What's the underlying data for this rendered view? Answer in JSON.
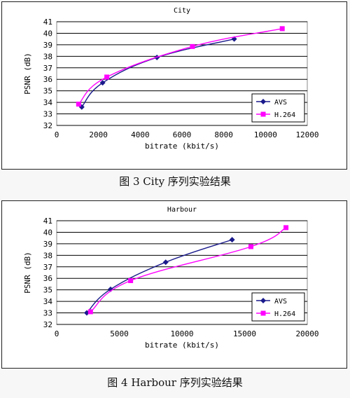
{
  "figures": [
    {
      "caption": "图 3 City 序列实验结果"
    },
    {
      "caption": "图 4 Harbour 序列实验结果"
    }
  ],
  "colors": {
    "avs": "#1a1a8c",
    "h264": "#ff00ff",
    "plot_bg": "#ffffff",
    "grid": "#000000"
  },
  "chart_data": [
    {
      "type": "line",
      "title": "City",
      "xlabel": "bitrate (kbit/s)",
      "ylabel": "PSNR (dB)",
      "xlim": [
        0,
        12000
      ],
      "ylim": [
        32,
        41
      ],
      "xticks": [
        0,
        2000,
        4000,
        6000,
        8000,
        10000,
        12000
      ],
      "yticks": [
        32,
        33,
        34,
        35,
        36,
        37,
        38,
        39,
        40,
        41
      ],
      "grid": "horizontal",
      "legend": "bottom-right",
      "series": [
        {
          "name": "AVS",
          "color": "#1a1a8c",
          "marker": "diamond",
          "x": [
            1200,
            2200,
            4800,
            8500
          ],
          "y": [
            33.6,
            35.7,
            37.9,
            39.5
          ]
        },
        {
          "name": "H.264",
          "color": "#ff00ff",
          "marker": "square",
          "x": [
            1050,
            2400,
            6500,
            10800
          ],
          "y": [
            33.85,
            36.2,
            38.85,
            40.4
          ]
        }
      ]
    },
    {
      "type": "line",
      "title": "Harbour",
      "xlabel": "bitrate (kbit/s)",
      "ylabel": "PSNR (dB)",
      "xlim": [
        0,
        20000
      ],
      "ylim": [
        32,
        41
      ],
      "xticks": [
        0,
        5000,
        10000,
        15000,
        20000
      ],
      "yticks": [
        32,
        33,
        34,
        35,
        36,
        37,
        38,
        39,
        40,
        41
      ],
      "grid": "horizontal",
      "legend": "bottom-right",
      "series": [
        {
          "name": "AVS",
          "color": "#1a1a8c",
          "marker": "diamond",
          "x": [
            2400,
            4300,
            8700,
            14000
          ],
          "y": [
            33.0,
            35.05,
            37.4,
            39.35
          ]
        },
        {
          "name": "H.264",
          "color": "#ff00ff",
          "marker": "square",
          "x": [
            2700,
            5900,
            15500,
            18300
          ],
          "y": [
            33.1,
            35.8,
            38.75,
            40.4
          ]
        }
      ]
    }
  ]
}
